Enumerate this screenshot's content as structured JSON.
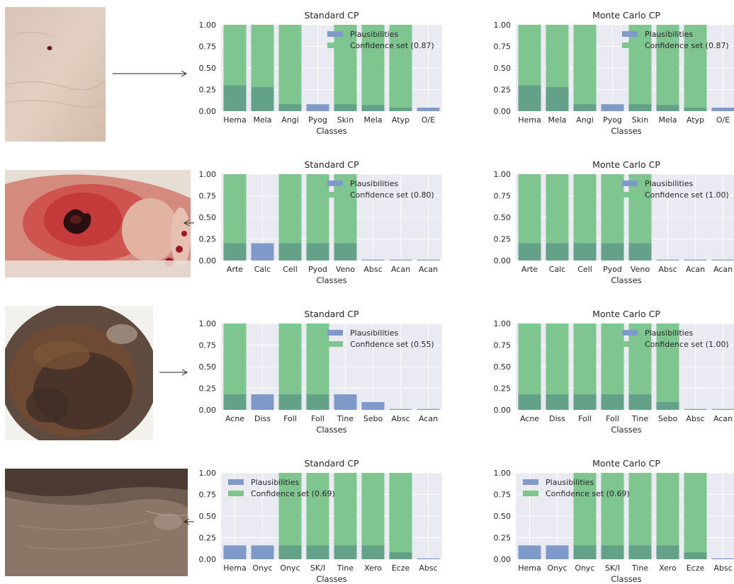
{
  "colors": {
    "plausibility": "#7f9ac8",
    "confidence": "#7fc58f",
    "overlap": "#63a288",
    "plot_bg": "#eaeaf2",
    "grid": "#ffffff",
    "text": "#262626"
  },
  "rows": [
    {
      "photo": "skin close-up with small dark spot",
      "arrow": "right",
      "charts": [
        {
          "type": "bar",
          "title": "Standard CP",
          "xlabel": "Classes",
          "legend_position": "upper-right",
          "legend": [
            "Plausibilities",
            "Confidence set (0.87)"
          ],
          "ylim": [
            0,
            1.0
          ],
          "yticks": [
            "0.00",
            "0.25",
            "0.50",
            "0.75",
            "1.00"
          ],
          "categories": [
            "Hema",
            "Mela",
            "Angi",
            "Pyog",
            "Skin",
            "Mela",
            "Atyp",
            "O/E"
          ],
          "series": [
            {
              "name": "Plausibilities",
              "values": [
                0.3,
                0.28,
                0.08,
                0.08,
                0.08,
                0.07,
                0.04,
                0.04
              ]
            },
            {
              "name": "Confidence set (0.87)",
              "values": [
                1,
                1,
                1,
                0,
                1,
                1,
                1,
                0
              ]
            }
          ]
        },
        {
          "type": "bar",
          "title": "Monte Carlo CP",
          "xlabel": "Classes",
          "legend_position": "upper-right",
          "legend": [
            "Plausibilities",
            "Confidence set (0.87)"
          ],
          "ylim": [
            0,
            1.0
          ],
          "yticks": [
            "0.00",
            "0.25",
            "0.50",
            "0.75",
            "1.00"
          ],
          "categories": [
            "Hema",
            "Mela",
            "Angi",
            "Pyog",
            "Skin",
            "Mela",
            "Atyp",
            "O/E"
          ],
          "series": [
            {
              "name": "Plausibilities",
              "values": [
                0.3,
                0.28,
                0.08,
                0.08,
                0.08,
                0.07,
                0.04,
                0.04
              ]
            },
            {
              "name": "Confidence set (0.87)",
              "values": [
                1,
                1,
                1,
                0,
                1,
                1,
                1,
                0
              ]
            }
          ]
        }
      ]
    },
    {
      "photo": "swollen red foot with dark wound",
      "arrow": "left",
      "charts": [
        {
          "type": "bar",
          "title": "Standard CP",
          "xlabel": "Classes",
          "legend_position": "upper-right",
          "legend": [
            "Plausibilities",
            "Confidence set (0.80)"
          ],
          "ylim": [
            0,
            1.0
          ],
          "yticks": [
            "0.00",
            "0.25",
            "0.50",
            "0.75",
            "1.00"
          ],
          "categories": [
            "Arte",
            "Calc",
            "Cell",
            "Pyod",
            "Veno",
            "Absc",
            "Acan",
            "Acan"
          ],
          "series": [
            {
              "name": "Plausibilities",
              "values": [
                0.2,
                0.2,
                0.2,
                0.2,
                0.2,
                0.01,
                0.01,
                0.01
              ]
            },
            {
              "name": "Confidence set (0.80)",
              "values": [
                1,
                0,
                1,
                1,
                1,
                0,
                0,
                0
              ]
            }
          ]
        },
        {
          "type": "bar",
          "title": "Monte Carlo CP",
          "xlabel": "Classes",
          "legend_position": "upper-right",
          "legend": [
            "Plausibilities",
            "Confidence set (1.00)"
          ],
          "ylim": [
            0,
            1.0
          ],
          "yticks": [
            "0.00",
            "0.25",
            "0.50",
            "0.75",
            "1.00"
          ],
          "categories": [
            "Arte",
            "Calc",
            "Cell",
            "Pyod",
            "Veno",
            "Absc",
            "Acan",
            "Acan"
          ],
          "series": [
            {
              "name": "Plausibilities",
              "values": [
                0.2,
                0.2,
                0.2,
                0.2,
                0.2,
                0.01,
                0.01,
                0.01
              ]
            },
            {
              "name": "Confidence set (1.00)",
              "values": [
                1,
                1,
                1,
                1,
                1,
                0,
                0,
                0
              ]
            }
          ]
        }
      ]
    },
    {
      "photo": "scalp with dark scaly patch",
      "arrow": "right",
      "charts": [
        {
          "type": "bar",
          "title": "Standard CP",
          "xlabel": "Classes",
          "legend_position": "upper-right",
          "legend": [
            "Plausibilities",
            "Confidence set (0.55)"
          ],
          "ylim": [
            0,
            1.0
          ],
          "yticks": [
            "0.00",
            "0.25",
            "0.50",
            "0.75",
            "1.00"
          ],
          "categories": [
            "Acne",
            "Diss",
            "Foll",
            "Foll",
            "Tine",
            "Sebo",
            "Absc",
            "Acan"
          ],
          "series": [
            {
              "name": "Plausibilities",
              "values": [
                0.18,
                0.18,
                0.18,
                0.18,
                0.18,
                0.09,
                0.01,
                0.01
              ]
            },
            {
              "name": "Confidence set (0.55)",
              "values": [
                1,
                0,
                1,
                1,
                0,
                0,
                0,
                0
              ]
            }
          ]
        },
        {
          "type": "bar",
          "title": "Monte Carlo CP",
          "xlabel": "Classes",
          "legend_position": "upper-right",
          "legend": [
            "Plausibilities",
            "Confidence set (1.00)"
          ],
          "ylim": [
            0,
            1.0
          ],
          "yticks": [
            "0.00",
            "0.25",
            "0.50",
            "0.75",
            "1.00"
          ],
          "categories": [
            "Acne",
            "Diss",
            "Foll",
            "Foll",
            "Tine",
            "Sebo",
            "Absc",
            "Acan"
          ],
          "series": [
            {
              "name": "Plausibilities",
              "values": [
                0.18,
                0.18,
                0.18,
                0.18,
                0.18,
                0.09,
                0.01,
                0.01
              ]
            },
            {
              "name": "Confidence set (1.00)",
              "values": [
                1,
                1,
                1,
                1,
                1,
                1,
                0,
                0
              ]
            }
          ]
        }
      ]
    },
    {
      "photo": "dark skin of foot with dry texture",
      "arrow": "left",
      "charts": [
        {
          "type": "bar",
          "title": "Standard CP",
          "xlabel": "Classes",
          "legend_position": "upper-left",
          "legend": [
            "Plausibilities",
            "Confidence set (0.69)"
          ],
          "ylim": [
            0,
            1.0
          ],
          "yticks": [
            "0.00",
            "0.25",
            "0.50",
            "0.75",
            "1.00"
          ],
          "categories": [
            "Hema",
            "Onyc",
            "Onyc",
            "SK/I",
            "Tine",
            "Xero",
            "Ecze",
            "Absc"
          ],
          "series": [
            {
              "name": "Plausibilities",
              "values": [
                0.16,
                0.16,
                0.16,
                0.16,
                0.16,
                0.16,
                0.08,
                0.01
              ]
            },
            {
              "name": "Confidence set (0.69)",
              "values": [
                0,
                0,
                1,
                1,
                1,
                1,
                1,
                0
              ]
            }
          ]
        },
        {
          "type": "bar",
          "title": "Monte Carlo CP",
          "xlabel": "Classes",
          "legend_position": "upper-left",
          "legend": [
            "Plausibilities",
            "Confidence set (0.69)"
          ],
          "ylim": [
            0,
            1.0
          ],
          "yticks": [
            "0.00",
            "0.25",
            "0.50",
            "0.75",
            "1.00"
          ],
          "categories": [
            "Hema",
            "Onyc",
            "Onyc",
            "SK/I",
            "Tine",
            "Xero",
            "Ecze",
            "Absc"
          ],
          "series": [
            {
              "name": "Plausibilities",
              "values": [
                0.16,
                0.16,
                0.16,
                0.16,
                0.16,
                0.16,
                0.08,
                0.01
              ]
            },
            {
              "name": "Confidence set (0.69)",
              "values": [
                0,
                0,
                1,
                1,
                1,
                1,
                1,
                0
              ]
            }
          ]
        }
      ]
    }
  ]
}
